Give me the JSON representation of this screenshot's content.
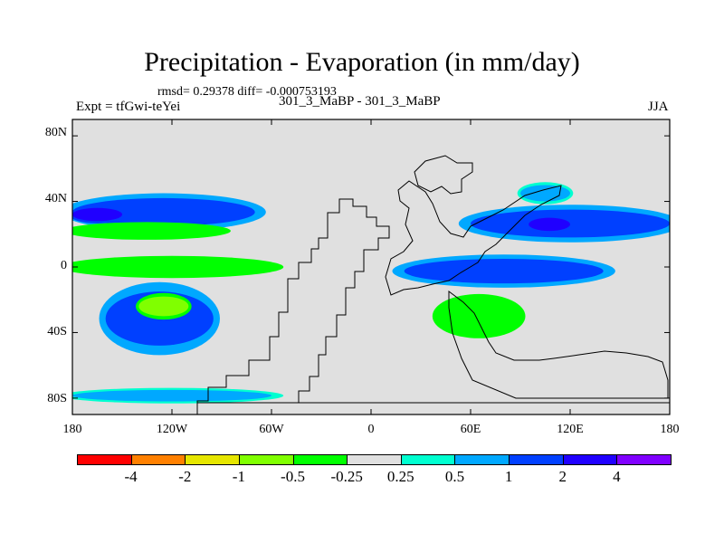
{
  "title": "Precipitation - Evaporation (in mm/day)",
  "stats": "rmsd= 0.29378 diff= -0.000753193",
  "expt": "Expt = tfGwi-teYei",
  "case_id": "301_3_MaBP - 301_3_MaBP",
  "season": "JJA",
  "lat_labels": [
    "80N",
    "40N",
    "0",
    "40S",
    "80S"
  ],
  "lon_labels": [
    "180",
    "120W",
    "60W",
    "0",
    "60E",
    "120E",
    "180"
  ],
  "colorbar": {
    "labels": [
      "-4",
      "-2",
      "-1",
      "-0.5",
      "-0.25",
      "0.25",
      "0.5",
      "1",
      "2",
      "4"
    ],
    "colors": [
      "#ff0000",
      "#ff8000",
      "#e6e600",
      "#80ff00",
      "#00ff00",
      "#e0e0e0",
      "#00ffd0",
      "#00a8ff",
      "#0040ff",
      "#2000ff",
      "#8000ff"
    ]
  },
  "chart_data": {
    "type": "heatmap",
    "title": "Precipitation - Evaporation (in mm/day)",
    "variable": "P-E",
    "units": "mm/day",
    "x_range": [
      -180,
      180
    ],
    "y_range": [
      -90,
      90
    ],
    "x_ticks": [
      "180",
      "120W",
      "60W",
      "0",
      "60E",
      "120E",
      "180"
    ],
    "y_ticks": [
      "80N",
      "40N",
      "0",
      "40S",
      "80S"
    ],
    "contour_levels": [
      -4,
      -2,
      -1,
      -0.5,
      -0.25,
      0.25,
      0.5,
      1,
      2,
      4
    ],
    "features": [
      {
        "name": "North Pacific storm-track band",
        "lon": [
          -180,
          -70
        ],
        "lat": [
          25,
          42
        ],
        "value": 1
      },
      {
        "name": "North Pacific core",
        "lon": [
          -180,
          -150
        ],
        "lat": [
          28,
          36
        ],
        "value": 2
      },
      {
        "name": "Subtropical North Pacific dry band",
        "lon": [
          -180,
          -90
        ],
        "lat": [
          18,
          26
        ],
        "value": -0.5
      },
      {
        "name": "Equatorial East Pacific dry band",
        "lon": [
          -180,
          -60
        ],
        "lat": [
          -5,
          5
        ],
        "value": -0.5
      },
      {
        "name": "South Pacific wet patch",
        "lon": [
          -160,
          -95
        ],
        "lat": [
          -48,
          -15
        ],
        "value": 1
      },
      {
        "name": "South Pacific dry core",
        "lon": [
          -140,
          -110
        ],
        "lat": [
          -30,
          -18
        ],
        "value": -1
      },
      {
        "name": "Southern Ocean band",
        "lon": [
          -180,
          -60
        ],
        "lat": [
          -82,
          -75
        ],
        "value": 0.5
      },
      {
        "name": "Indian Ocean / East Asia wet band",
        "lon": [
          60,
          180
        ],
        "lat": [
          18,
          35
        ],
        "value": 1
      },
      {
        "name": "East Asia wet core",
        "lon": [
          95,
          120
        ],
        "lat": [
          22,
          30
        ],
        "value": 2
      },
      {
        "name": "Equatorial Indo-Pacific band",
        "lon": [
          20,
          140
        ],
        "lat": [
          -10,
          5
        ],
        "value": 1
      },
      {
        "name": "Southern Indian Ocean patch",
        "lon": [
          40,
          90
        ],
        "lat": [
          -40,
          -20
        ],
        "value": -0.5
      },
      {
        "name": "Arctic North Atlantic patch",
        "lon": [
          90,
          120
        ],
        "lat": [
          40,
          50
        ],
        "value": 0.5
      }
    ]
  }
}
